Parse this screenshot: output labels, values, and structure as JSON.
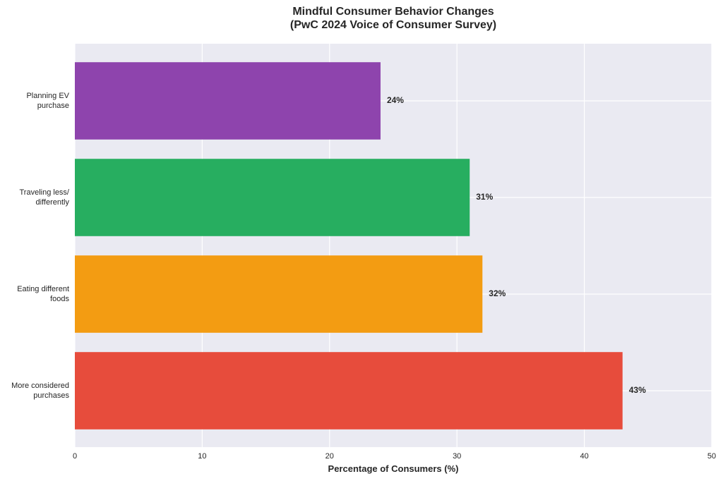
{
  "chart_data": {
    "type": "barh",
    "title": "Mindful Consumer Behavior Changes\n(PwC 2024 Voice of Consumer Survey)",
    "x_label": "Percentage of Consumers (%)",
    "categories": [
      "More considered\npurchases",
      "Eating different\nfoods",
      "Traveling less/\ndifferently",
      "Planning EV\npurchase"
    ],
    "values": [
      43,
      32,
      31,
      24
    ],
    "value_labels": [
      "43%",
      "32%",
      "31%",
      "24%"
    ],
    "colors": [
      "#e74c3c",
      "#f39c12",
      "#27ae60",
      "#8e44ad"
    ],
    "xlim": [
      0,
      50
    ],
    "xticks": [
      0,
      10,
      20,
      30,
      40,
      50
    ],
    "grid": true
  }
}
